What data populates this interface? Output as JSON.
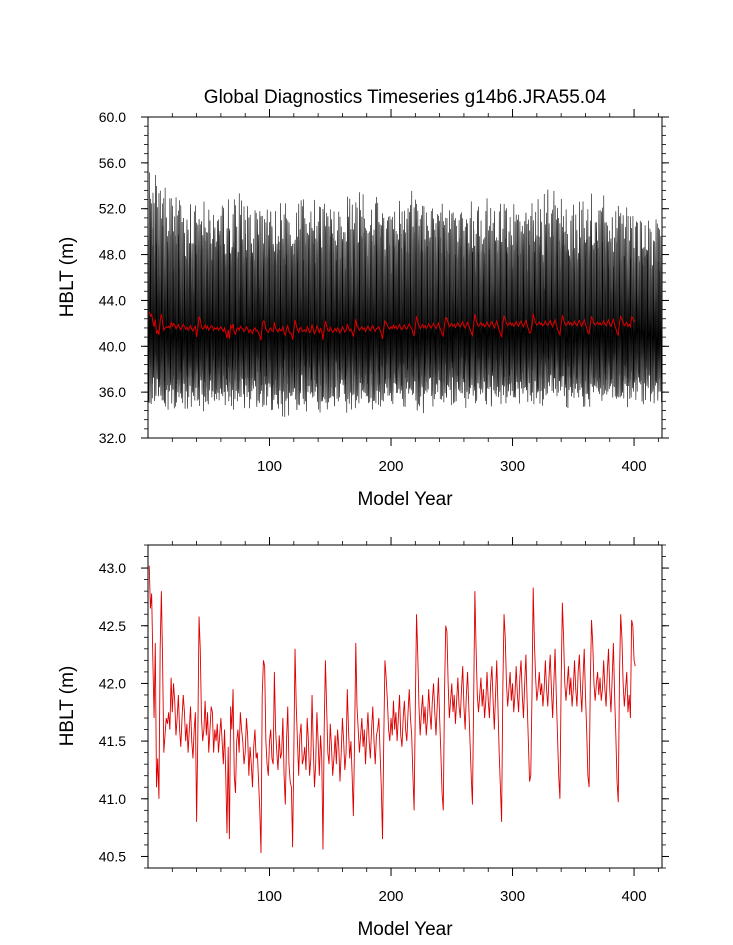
{
  "figure": {
    "title": "Global Diagnostics Timeseries g14b6.JRA55.04"
  },
  "chart_data": [
    {
      "type": "line",
      "title": "Global Diagnostics Timeseries g14b6.JRA55.04",
      "xlabel": "Model Year",
      "ylabel": "HBLT (m)",
      "xlim": [
        0,
        423
      ],
      "ylim": [
        32.0,
        60.0
      ],
      "xticks": [
        100,
        200,
        300,
        400
      ],
      "xtick_labels": [
        "100",
        "200",
        "300",
        "400"
      ],
      "yticks": [
        32.0,
        36.0,
        40.0,
        44.0,
        48.0,
        52.0,
        56.0,
        60.0
      ],
      "ytick_labels": [
        "32.0",
        "36.0",
        "40.0",
        "44.0",
        "48.0",
        "52.0",
        "56.0",
        "60.0"
      ],
      "grid": false,
      "series": [
        {
          "color": "#000000",
          "resolution": "monthly",
          "description_values": "dense monthly oscillation roughly between 33.5 and 55.5, annual cycle; mean near 41.5",
          "min_envelope": [
            [
              0,
              34.2
            ],
            [
              25,
              33.8
            ],
            [
              50,
              34.0
            ],
            [
              75,
              34.1
            ],
            [
              100,
              33.9
            ],
            [
              125,
              33.6
            ],
            [
              150,
              34.0
            ],
            [
              175,
              33.9
            ],
            [
              200,
              34.3
            ],
            [
              225,
              34.0
            ],
            [
              250,
              34.1
            ],
            [
              275,
              34.5
            ],
            [
              300,
              34.4
            ],
            [
              325,
              34.6
            ],
            [
              350,
              34.2
            ],
            [
              375,
              34.3
            ],
            [
              400,
              34.8
            ],
            [
              423,
              34.7
            ]
          ],
          "max_envelope": [
            [
              0,
              55.5
            ],
            [
              10,
              54.9
            ],
            [
              25,
              52.8
            ],
            [
              50,
              53.0
            ],
            [
              75,
              53.5
            ],
            [
              100,
              52.4
            ],
            [
              125,
              53.1
            ],
            [
              150,
              52.6
            ],
            [
              175,
              53.4
            ],
            [
              200,
              52.9
            ],
            [
              215,
              54.0
            ],
            [
              225,
              53.2
            ],
            [
              250,
              52.7
            ],
            [
              275,
              53.1
            ],
            [
              300,
              52.5
            ],
            [
              325,
              53.6
            ],
            [
              350,
              52.8
            ],
            [
              375,
              53.3
            ],
            [
              400,
              51.9
            ],
            [
              423,
              51.2
            ]
          ]
        },
        {
          "color": "#dd0000",
          "resolution": "annual mean",
          "name": "",
          "x_start": 1,
          "x_step": 1,
          "values": []
        }
      ]
    },
    {
      "type": "line",
      "title": "",
      "xlabel": "Model Year",
      "ylabel": "HBLT (m)",
      "xlim": [
        0,
        423
      ],
      "ylim": [
        40.4,
        43.2
      ],
      "xticks": [
        100,
        200,
        300,
        400
      ],
      "xtick_labels": [
        "100",
        "200",
        "300",
        "400"
      ],
      "yticks": [
        40.5,
        41.0,
        41.5,
        42.0,
        42.5,
        43.0
      ],
      "ytick_labels": [
        "40.5",
        "41.0",
        "41.5",
        "42.0",
        "42.5",
        "43.0"
      ],
      "grid": false,
      "series": [
        {
          "color": "#dd0000",
          "resolution": "annual mean",
          "x_start": 1,
          "x_step": 1,
          "values": [
            43.02,
            42.65,
            42.78,
            42.2,
            41.7,
            42.35,
            41.1,
            41.35,
            41.0,
            42.3,
            42.8,
            42.2,
            41.4,
            41.55,
            41.7,
            41.65,
            41.75,
            41.6,
            42.05,
            41.75,
            42.0,
            41.85,
            41.55,
            41.7,
            41.9,
            41.6,
            41.45,
            41.7,
            41.9,
            41.75,
            41.5,
            41.65,
            41.4,
            41.6,
            41.8,
            41.5,
            41.35,
            41.6,
            41.75,
            40.8,
            41.55,
            42.58,
            42.3,
            41.7,
            41.5,
            41.6,
            41.85,
            41.55,
            41.75,
            41.4,
            41.6,
            41.8,
            41.75,
            41.4,
            41.6,
            41.5,
            41.65,
            41.4,
            41.55,
            41.7,
            41.5,
            41.3,
            41.6,
            41.2,
            40.7,
            41.45,
            40.65,
            41.8,
            41.6,
            41.95,
            41.2,
            41.05,
            41.5,
            41.6,
            41.4,
            41.75,
            41.6,
            41.5,
            41.3,
            41.4,
            41.7,
            41.55,
            41.2,
            41.45,
            41.3,
            41.1,
            41.45,
            41.6,
            41.35,
            41.4,
            41.15,
            40.9,
            40.53,
            41.9,
            42.2,
            42.15,
            41.5,
            41.3,
            41.2,
            41.5,
            41.6,
            41.35,
            41.3,
            42.1,
            41.6,
            41.4,
            41.25,
            41.55,
            41.35,
            41.4,
            41.7,
            41.2,
            40.95,
            41.5,
            41.8,
            41.3,
            41.15,
            41.1,
            40.58,
            41.4,
            42.3,
            41.8,
            41.5,
            41.2,
            41.55,
            41.65,
            41.3,
            41.35,
            41.45,
            41.25,
            41.7,
            41.5,
            41.2,
            41.35,
            41.9,
            41.45,
            41.1,
            41.3,
            41.75,
            41.5,
            41.2,
            41.55,
            41.35,
            40.56,
            41.6,
            42.2,
            41.8,
            41.4,
            41.3,
            41.65,
            41.45,
            41.2,
            41.35,
            41.55,
            41.3,
            41.6,
            41.45,
            41.15,
            41.4,
            41.7,
            41.5,
            41.25,
            41.4,
            41.95,
            41.6,
            41.35,
            41.5,
            41.2,
            40.85,
            41.5,
            42.35,
            41.8,
            41.6,
            41.4,
            41.55,
            41.7,
            41.45,
            41.6,
            41.3,
            41.55,
            41.75,
            41.5,
            41.35,
            41.6,
            41.8,
            41.5,
            41.3,
            41.55,
            41.6,
            41.7,
            41.4,
            41.1,
            40.65,
            41.5,
            42.2,
            42.05,
            41.85,
            41.6,
            41.5,
            41.7,
            41.55,
            41.85,
            41.6,
            41.75,
            41.5,
            41.7,
            41.9,
            41.55,
            41.45,
            41.7,
            41.85,
            41.6,
            41.5,
            41.75,
            41.95,
            41.7,
            41.55,
            41.2,
            40.9,
            41.8,
            42.6,
            42.25,
            41.8,
            41.55,
            41.75,
            41.9,
            41.65,
            41.8,
            41.55,
            41.7,
            41.95,
            41.75,
            41.6,
            41.85,
            42.0,
            41.75,
            41.55,
            41.8,
            42.05,
            41.7,
            41.4,
            41.05,
            40.9,
            41.9,
            42.5,
            42.45,
            42.0,
            41.7,
            41.85,
            42.0,
            41.75,
            41.9,
            41.65,
            41.85,
            42.05,
            41.8,
            41.7,
            41.95,
            42.15,
            41.8,
            41.6,
            41.9,
            42.1,
            41.8,
            41.5,
            41.2,
            40.95,
            41.85,
            42.8,
            42.3,
            41.9,
            41.75,
            41.9,
            42.05,
            41.8,
            41.95,
            41.7,
            41.85,
            42.1,
            41.85,
            41.7,
            42.0,
            42.15,
            41.85,
            41.6,
            41.9,
            42.2,
            41.8,
            41.4,
            41.1,
            40.8,
            41.95,
            42.6,
            42.4,
            42.0,
            41.8,
            41.95,
            42.1,
            41.85,
            42.0,
            41.75,
            41.9,
            42.15,
            41.9,
            41.75,
            42.05,
            42.2,
            41.9,
            41.7,
            42.0,
            42.25,
            41.85,
            41.5,
            41.15,
            41.2,
            41.9,
            42.83,
            42.35,
            42.05,
            41.85,
            41.95,
            42.1,
            41.9,
            42.0,
            41.8,
            41.95,
            42.2,
            41.95,
            41.8,
            42.05,
            42.25,
            41.95,
            41.7,
            42.0,
            42.3,
            41.9,
            41.55,
            41.2,
            41.0,
            42.0,
            42.7,
            42.4,
            42.0,
            41.85,
            42.0,
            42.15,
            41.9,
            42.05,
            41.8,
            41.95,
            42.2,
            41.95,
            41.8,
            42.1,
            42.25,
            41.95,
            41.75,
            42.05,
            42.3,
            41.9,
            41.6,
            41.2,
            41.1,
            42.0,
            42.55,
            42.35,
            42.0,
            41.85,
            42.0,
            42.1,
            41.9,
            42.05,
            41.85,
            41.95,
            42.2,
            41.95,
            41.8,
            42.1,
            42.3,
            41.95,
            41.75,
            42.05,
            42.35,
            41.9,
            41.55,
            41.15,
            40.97,
            42.05,
            42.6,
            42.4,
            42.0,
            41.8,
            41.95,
            42.1,
            41.75,
            41.9,
            41.7,
            42.55,
            42.5,
            42.2,
            42.15
          ]
        }
      ]
    }
  ]
}
